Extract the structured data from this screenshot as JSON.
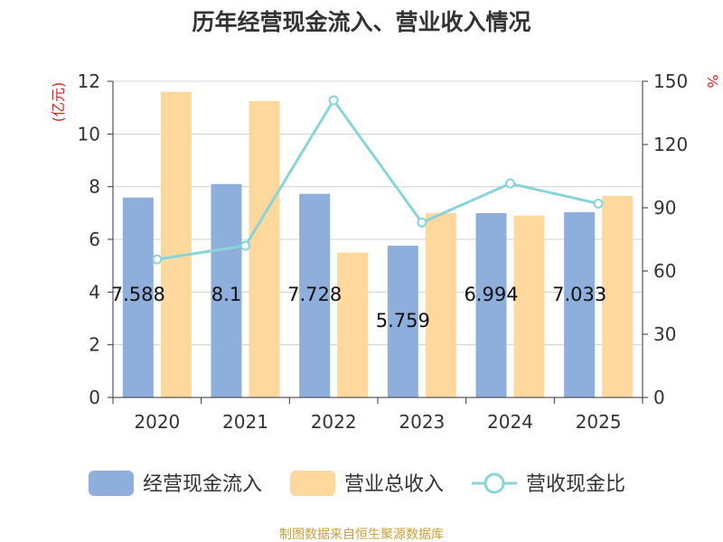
{
  "chart_data": {
    "type": "bar",
    "title": "历年经营现金流入、营业收入情况",
    "categories": [
      "2020",
      "2021",
      "2022",
      "2023",
      "2024",
      "2025"
    ],
    "series": [
      {
        "name": "经营现金流入",
        "kind": "bar",
        "axis": "left",
        "color": "#8eaedb",
        "values": [
          7.588,
          8.1,
          7.728,
          5.759,
          6.994,
          7.033
        ],
        "labels": [
          "7.588",
          "8.1",
          "7.728",
          "5.759",
          "6.994",
          "7.033"
        ]
      },
      {
        "name": "营业总收入",
        "kind": "bar",
        "axis": "left",
        "color": "#fed89c",
        "values": [
          11.6,
          11.25,
          5.5,
          7.0,
          6.9,
          7.65
        ]
      },
      {
        "name": "营收现金比",
        "kind": "line",
        "axis": "right",
        "color": "#88d4d8",
        "values": [
          65.5,
          72,
          141,
          83,
          101.5,
          92
        ]
      }
    ],
    "y_left": {
      "label": "(亿元)",
      "min": 0,
      "max": 12,
      "ticks": [
        0,
        2,
        4,
        6,
        8,
        10,
        12
      ]
    },
    "y_right": {
      "label": "%",
      "min": 0,
      "max": 150,
      "ticks": [
        0,
        30,
        60,
        90,
        120,
        150
      ]
    },
    "grid": true,
    "legend_position": "bottom",
    "source": "制图数据来自恒生聚源数据库"
  }
}
